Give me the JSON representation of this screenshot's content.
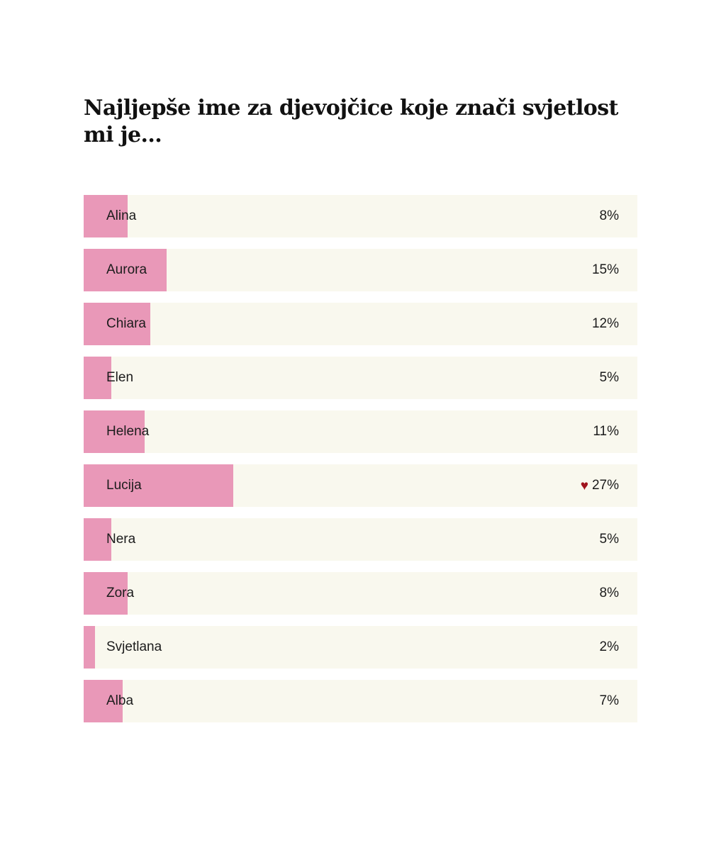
{
  "poll": {
    "title": "Najljepše ime za djevojčice koje znači svjetlost mi je...",
    "heart_icon": "♥",
    "colors": {
      "bar": "#e998b8",
      "track": "#f9f8ee",
      "heart": "#a0141e",
      "text": "#1c1c1c"
    },
    "options": [
      {
        "label": "Alina",
        "value": 8,
        "display": "8%",
        "voted": false
      },
      {
        "label": "Aurora",
        "value": 15,
        "display": "15%",
        "voted": false
      },
      {
        "label": "Chiara",
        "value": 12,
        "display": "12%",
        "voted": false
      },
      {
        "label": "Elen",
        "value": 5,
        "display": "5%",
        "voted": false
      },
      {
        "label": "Helena",
        "value": 11,
        "display": "11%",
        "voted": false
      },
      {
        "label": "Lucija",
        "value": 27,
        "display": "27%",
        "voted": true
      },
      {
        "label": "Nera",
        "value": 5,
        "display": "5%",
        "voted": false
      },
      {
        "label": "Zora",
        "value": 8,
        "display": "8%",
        "voted": false
      },
      {
        "label": "Svjetlana",
        "value": 2,
        "display": "2%",
        "voted": false
      },
      {
        "label": "Alba",
        "value": 7,
        "display": "7%",
        "voted": false
      }
    ]
  },
  "chart_data": {
    "type": "bar",
    "orientation": "horizontal",
    "title": "Najljepše ime za djevojčice koje znači svjetlost mi je...",
    "categories": [
      "Alina",
      "Aurora",
      "Chiara",
      "Elen",
      "Helena",
      "Lucija",
      "Nera",
      "Zora",
      "Svjetlana",
      "Alba"
    ],
    "values": [
      8,
      15,
      12,
      5,
      11,
      27,
      5,
      8,
      2,
      7
    ],
    "unit": "%",
    "xlabel": "",
    "ylabel": "",
    "xlim": [
      0,
      100
    ],
    "grid": false,
    "legend": null,
    "annotations": [
      {
        "category": "Lucija",
        "marker": "heart",
        "meaning": "user's vote"
      }
    ]
  }
}
